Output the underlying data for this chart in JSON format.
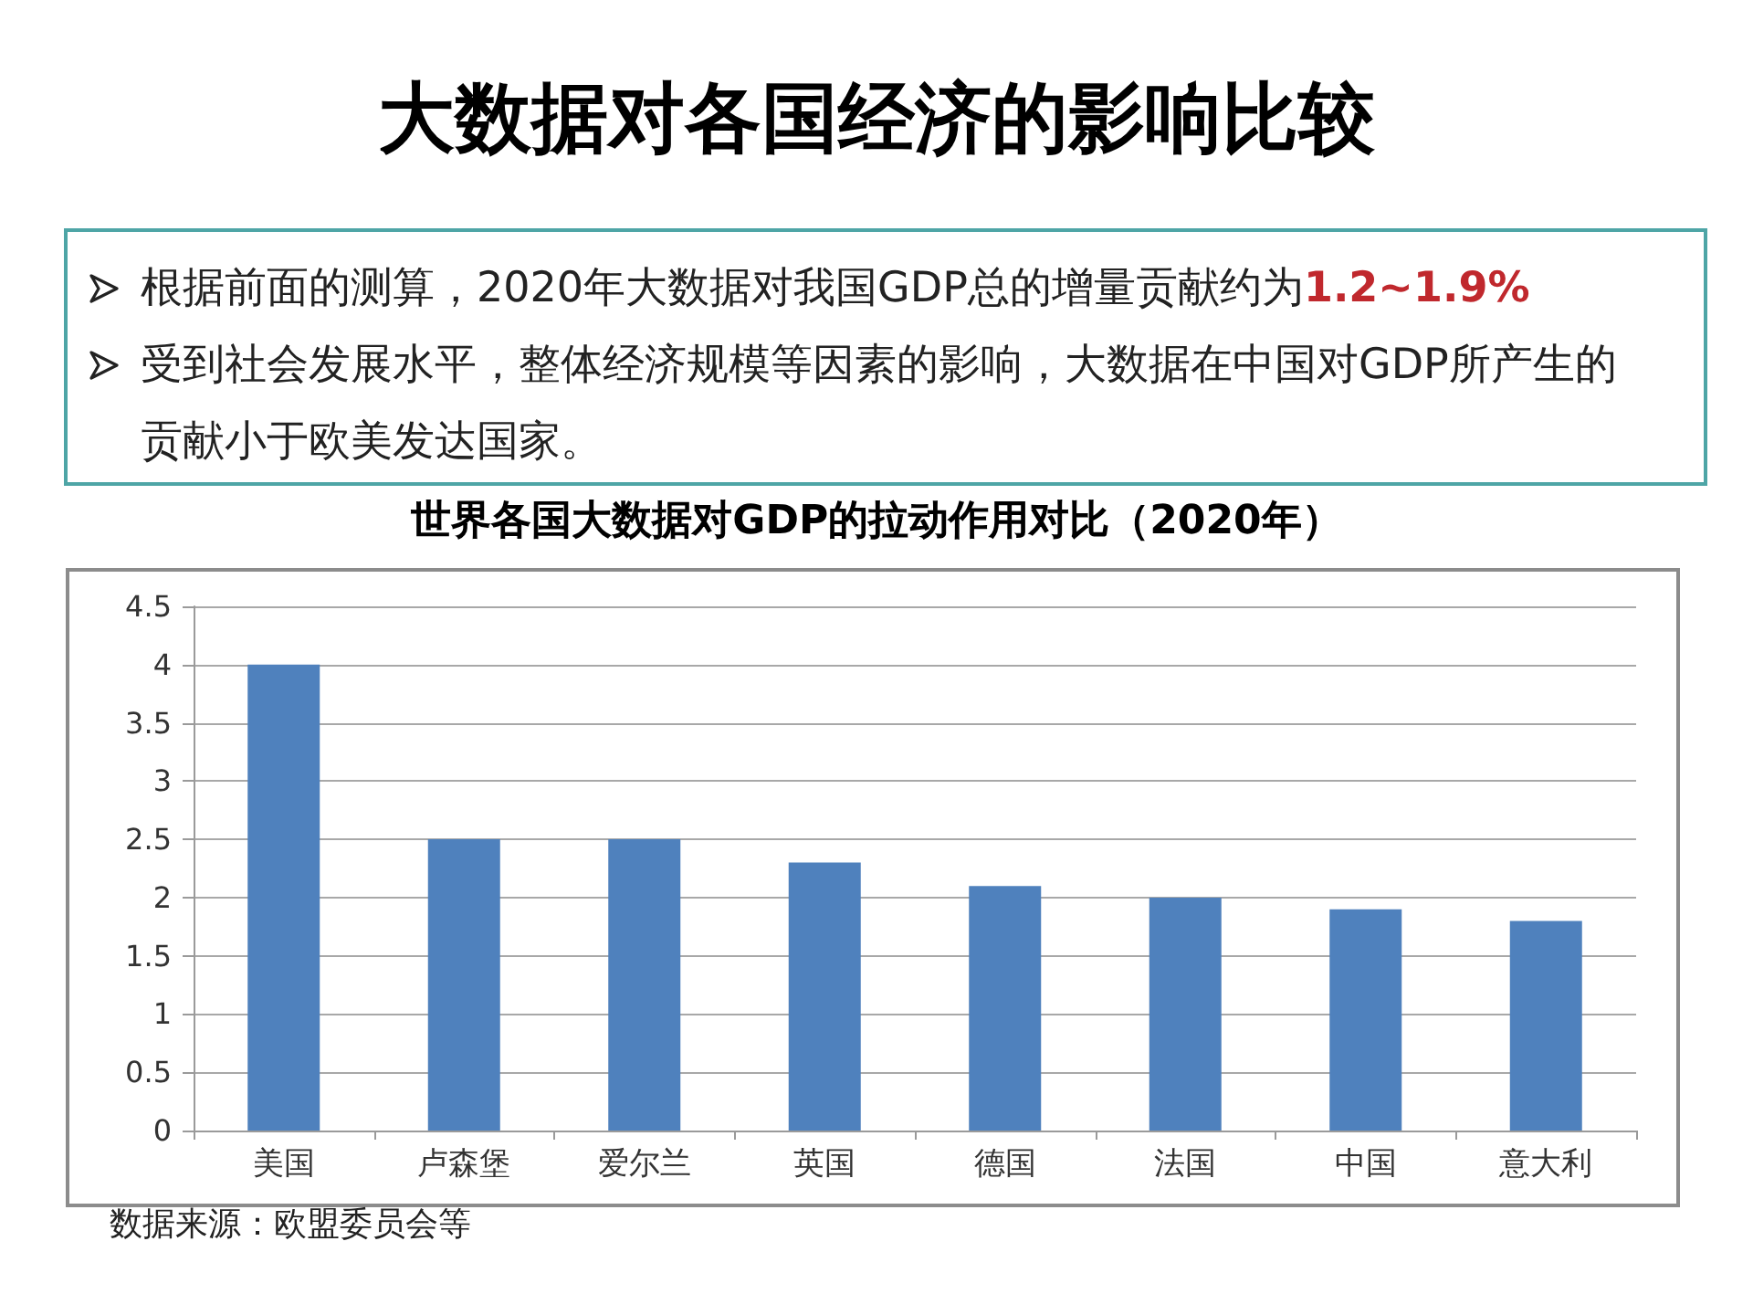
{
  "chart_data": {
    "type": "bar",
    "title": "大数据对各国经济的影响比较",
    "subtitle": "世界各国大数据对GDP的拉动作用对比（2020年）",
    "annotations": [
      "根据前面的测算，2020年大数据对我国GDP总的增量贡献约为1.2~1.9%",
      "受到社会发展水平，整体经济规模等因素的影响，大数据在中国对GDP所产生的贡献小于欧美发达国家。",
      "数据来源：欧盟委员会等"
    ],
    "categories": [
      "美国",
      "卢森堡",
      "爱尔兰",
      "英国",
      "德国",
      "法国",
      "中国",
      "意大利"
    ],
    "values": [
      4,
      2.5,
      2.5,
      2.3,
      2.1,
      2.0,
      1.9,
      1.8
    ],
    "color": "#4f81bd",
    "ylim": [
      0,
      4.5
    ],
    "yticks": [
      0,
      0.5,
      1,
      1.5,
      2,
      2.5,
      3,
      3.5,
      4,
      4.5
    ],
    "grid": "y"
  }
}
